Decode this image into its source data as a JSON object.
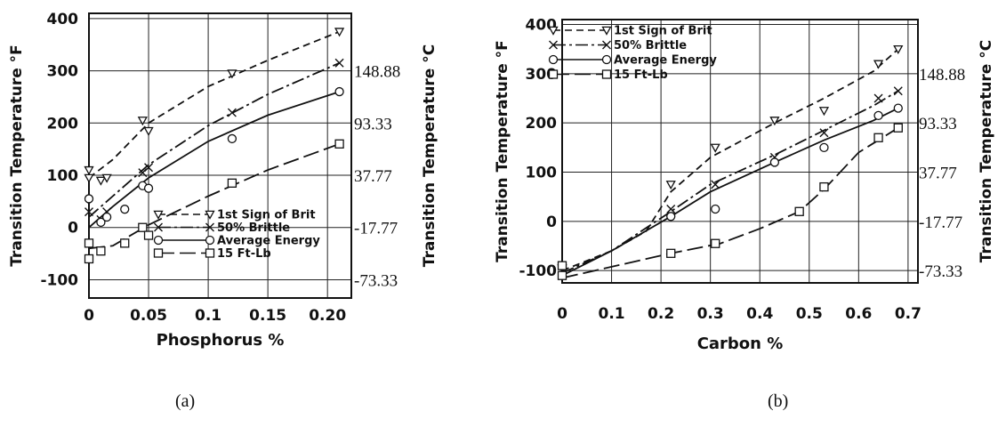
{
  "chart_data": [
    {
      "type": "line",
      "panel_label": "(a)",
      "xlabel": "Phosphorus %",
      "ylabel": "Transition Temperature °F",
      "ylabel_right": "Transition Temperature °C",
      "xlim": [
        0,
        0.22
      ],
      "ylim": [
        -135,
        410
      ],
      "x_ticks": [
        {
          "value": 0,
          "label": "0"
        },
        {
          "value": 0.05,
          "label": "0.05"
        },
        {
          "value": 0.1,
          "label": "0.1"
        },
        {
          "value": 0.15,
          "label": "0.15"
        },
        {
          "value": 0.2,
          "label": "0.20"
        }
      ],
      "y_ticks": [
        {
          "value": -100,
          "label": "-100"
        },
        {
          "value": 0,
          "label": "0"
        },
        {
          "value": 100,
          "label": "100"
        },
        {
          "value": 200,
          "label": "200"
        },
        {
          "value": 300,
          "label": "300"
        },
        {
          "value": 400,
          "label": "400"
        }
      ],
      "y_right_ticks": [
        {
          "value": 300,
          "label": "148.88"
        },
        {
          "value": 200,
          "label": "93.33"
        },
        {
          "value": 100,
          "label": "37.77"
        },
        {
          "value": 0,
          "label": "-17.77"
        },
        {
          "value": -100,
          "label": "-73.33"
        }
      ],
      "grid": true,
      "legend": "bottom-right",
      "series": [
        {
          "name": "1st Sign of Brit",
          "marker": "triangle",
          "dash": "8 5",
          "line": [
            [
              0,
              95
            ],
            [
              0.02,
              130
            ],
            [
              0.05,
              200
            ],
            [
              0.1,
              270
            ],
            [
              0.15,
              320
            ],
            [
              0.21,
              375
            ]
          ],
          "points": [
            [
              0,
              110
            ],
            [
              0,
              95
            ],
            [
              0.01,
              90
            ],
            [
              0.015,
              95
            ],
            [
              0.045,
              205
            ],
            [
              0.05,
              185
            ],
            [
              0.12,
              295
            ],
            [
              0.21,
              375
            ]
          ]
        },
        {
          "name": "50% Brittle",
          "marker": "x",
          "dash": "14 4 3 4",
          "line": [
            [
              0,
              20
            ],
            [
              0.02,
              60
            ],
            [
              0.05,
              120
            ],
            [
              0.1,
              195
            ],
            [
              0.15,
              255
            ],
            [
              0.21,
              315
            ]
          ],
          "points": [
            [
              0,
              30
            ],
            [
              0.01,
              15
            ],
            [
              0.015,
              30
            ],
            [
              0.045,
              105
            ],
            [
              0.05,
              115
            ],
            [
              0.12,
              220
            ],
            [
              0.21,
              315
            ]
          ]
        },
        {
          "name": "Average Energy",
          "marker": "circle",
          "dash": "",
          "line": [
            [
              0,
              0
            ],
            [
              0.02,
              40
            ],
            [
              0.05,
              95
            ],
            [
              0.1,
              165
            ],
            [
              0.15,
              215
            ],
            [
              0.21,
              260
            ]
          ],
          "points": [
            [
              0,
              55
            ],
            [
              0.01,
              10
            ],
            [
              0.015,
              20
            ],
            [
              0.03,
              35
            ],
            [
              0.045,
              80
            ],
            [
              0.05,
              75
            ],
            [
              0.12,
              170
            ],
            [
              0.21,
              260
            ]
          ]
        },
        {
          "name": "15 Ft-Lb",
          "marker": "square",
          "dash": "18 6",
          "line": [
            [
              0,
              -40
            ],
            [
              0.02,
              -35
            ],
            [
              0.05,
              5
            ],
            [
              0.1,
              60
            ],
            [
              0.15,
              110
            ],
            [
              0.21,
              160
            ]
          ],
          "points": [
            [
              0,
              -30
            ],
            [
              0,
              -60
            ],
            [
              0.01,
              -45
            ],
            [
              0.03,
              -30
            ],
            [
              0.045,
              0
            ],
            [
              0.05,
              -15
            ],
            [
              0.12,
              85
            ],
            [
              0.21,
              160
            ]
          ]
        }
      ]
    },
    {
      "type": "line",
      "panel_label": "(b)",
      "xlabel": "Carbon %",
      "ylabel": "Transition Temperature °F",
      "ylabel_right": "Transition Temperature °C",
      "xlim": [
        0,
        0.72
      ],
      "ylim": [
        -125,
        410
      ],
      "x_ticks": [
        {
          "value": 0,
          "label": "0"
        },
        {
          "value": 0.1,
          "label": "0.1"
        },
        {
          "value": 0.2,
          "label": "0.2"
        },
        {
          "value": 0.3,
          "label": "0.3"
        },
        {
          "value": 0.4,
          "label": "0.4"
        },
        {
          "value": 0.5,
          "label": "0.5"
        },
        {
          "value": 0.6,
          "label": "0.6"
        },
        {
          "value": 0.7,
          "label": "0.7"
        }
      ],
      "y_ticks": [
        {
          "value": -100,
          "label": "-100"
        },
        {
          "value": 0,
          "label": "0"
        },
        {
          "value": 100,
          "label": "100"
        },
        {
          "value": 200,
          "label": "200"
        },
        {
          "value": 300,
          "label": "300"
        },
        {
          "value": 400,
          "label": "400"
        }
      ],
      "y_right_ticks": [
        {
          "value": 300,
          "label": "148.88"
        },
        {
          "value": 200,
          "label": "93.33"
        },
        {
          "value": 100,
          "label": "37.77"
        },
        {
          "value": 0,
          "label": "-17.77"
        },
        {
          "value": -100,
          "label": "-73.33"
        }
      ],
      "grid": true,
      "legend": "top-left",
      "series": [
        {
          "name": "1st Sign of Brit",
          "marker": "triangle",
          "dash": "8 5",
          "line": [
            [
              0,
              -100
            ],
            [
              0.1,
              -60
            ],
            [
              0.17,
              -20
            ],
            [
              0.22,
              60
            ],
            [
              0.3,
              130
            ],
            [
              0.43,
              200
            ],
            [
              0.53,
              250
            ],
            [
              0.63,
              305
            ],
            [
              0.68,
              350
            ]
          ],
          "points": [
            [
              0,
              -95
            ],
            [
              0.22,
              75
            ],
            [
              0.31,
              150
            ],
            [
              0.43,
              205
            ],
            [
              0.53,
              225
            ],
            [
              0.64,
              320
            ],
            [
              0.68,
              350
            ]
          ]
        },
        {
          "name": "50% Brittle",
          "marker": "x",
          "dash": "14 4 3 4",
          "line": [
            [
              0,
              -105
            ],
            [
              0.1,
              -60
            ],
            [
              0.22,
              20
            ],
            [
              0.3,
              75
            ],
            [
              0.43,
              135
            ],
            [
              0.53,
              185
            ],
            [
              0.63,
              235
            ],
            [
              0.68,
              265
            ]
          ],
          "points": [
            [
              0,
              -100
            ],
            [
              0.22,
              25
            ],
            [
              0.31,
              75
            ],
            [
              0.43,
              130
            ],
            [
              0.53,
              180
            ],
            [
              0.64,
              250
            ],
            [
              0.68,
              265
            ]
          ]
        },
        {
          "name": "Average Energy",
          "marker": "circle",
          "dash": "",
          "line": [
            [
              0,
              -110
            ],
            [
              0.1,
              -60
            ],
            [
              0.22,
              10
            ],
            [
              0.3,
              60
            ],
            [
              0.43,
              120
            ],
            [
              0.53,
              165
            ],
            [
              0.63,
              205
            ],
            [
              0.68,
              230
            ]
          ],
          "points": [
            [
              0,
              -90
            ],
            [
              0.22,
              10
            ],
            [
              0.31,
              25
            ],
            [
              0.43,
              120
            ],
            [
              0.53,
              150
            ],
            [
              0.64,
              215
            ],
            [
              0.68,
              230
            ]
          ]
        },
        {
          "name": "15 Ft-Lb",
          "marker": "square",
          "dash": "18 6",
          "line": [
            [
              0,
              -115
            ],
            [
              0.22,
              -65
            ],
            [
              0.32,
              -45
            ],
            [
              0.4,
              -15
            ],
            [
              0.48,
              20
            ],
            [
              0.53,
              65
            ],
            [
              0.6,
              140
            ],
            [
              0.68,
              190
            ]
          ],
          "points": [
            [
              0,
              -110
            ],
            [
              0,
              -90
            ],
            [
              0.22,
              -65
            ],
            [
              0.31,
              -45
            ],
            [
              0.48,
              20
            ],
            [
              0.53,
              70
            ],
            [
              0.64,
              170
            ],
            [
              0.68,
              190
            ]
          ]
        }
      ]
    }
  ]
}
